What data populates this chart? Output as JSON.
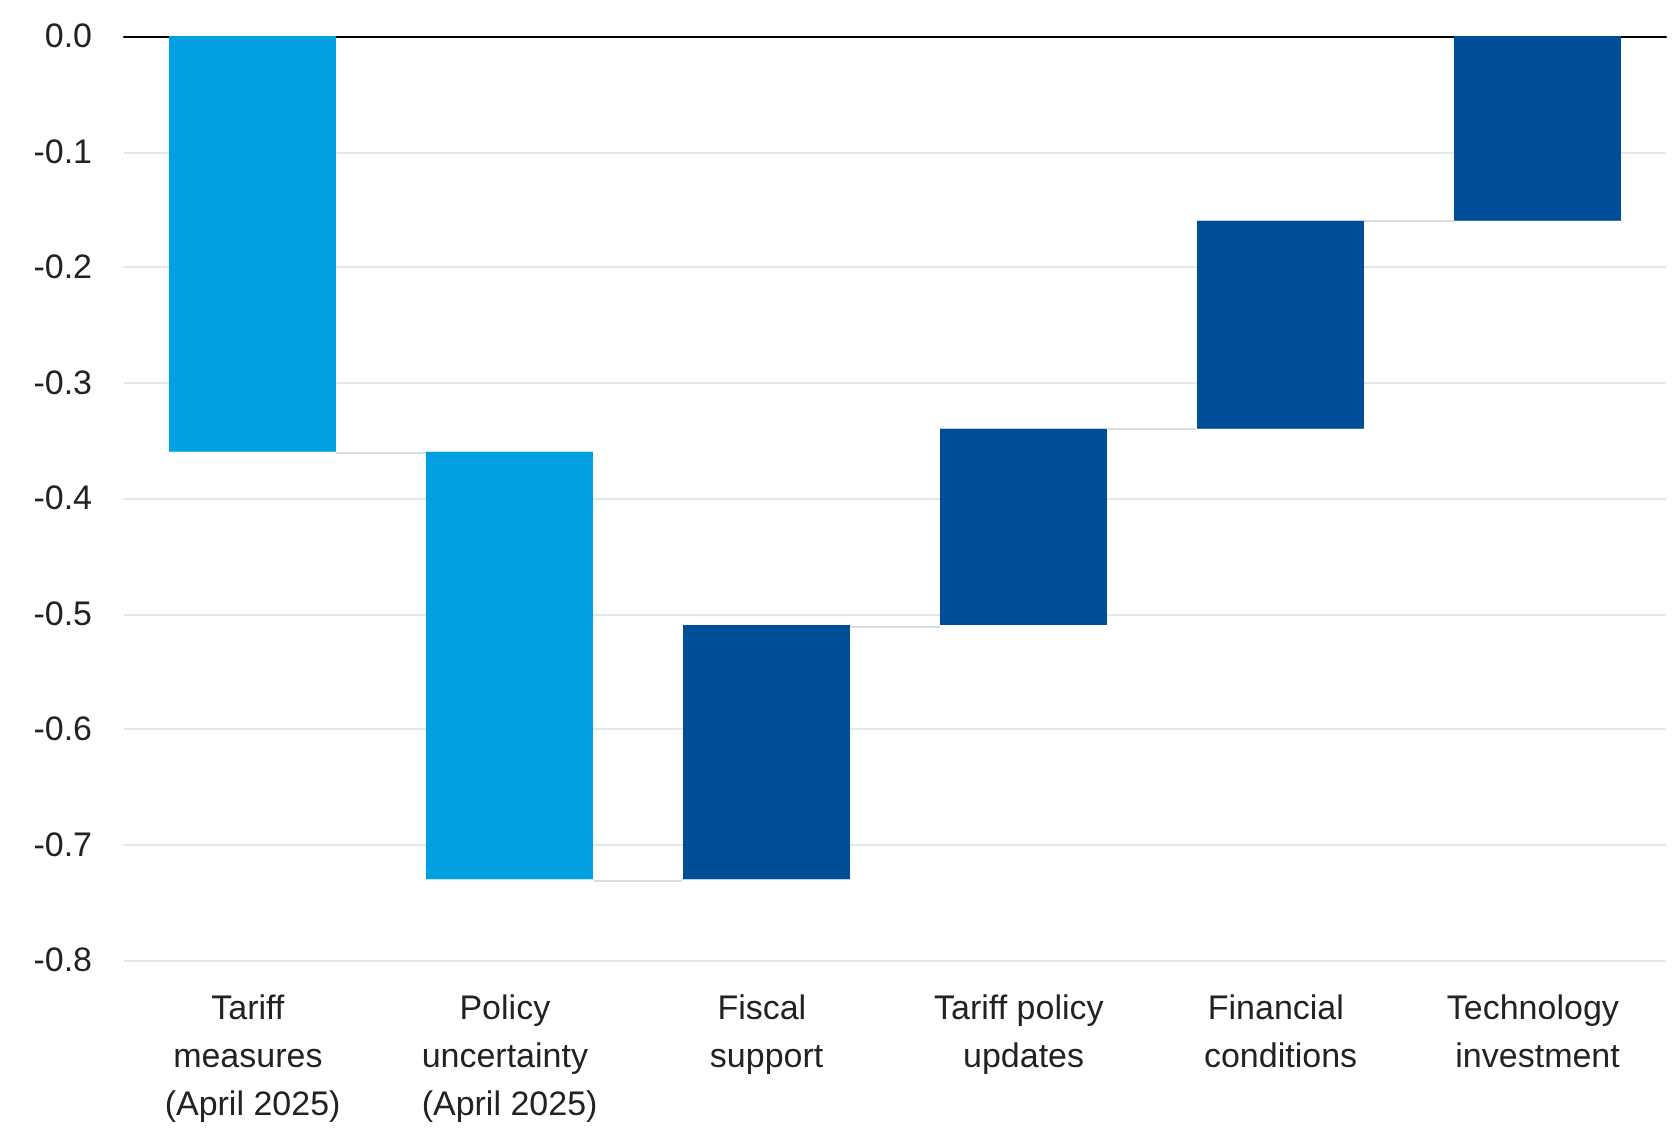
{
  "chart_data": {
    "type": "bar",
    "categories": [
      "Tariff measures (April 2025)",
      "Policy uncertainty (April 2025)",
      "Fiscal support",
      "Tariff policy updates",
      "Financial conditions",
      "Technology investment"
    ],
    "values": [
      -0.36,
      -0.37,
      0.22,
      0.17,
      0.18,
      0.16
    ],
    "base": [
      0,
      -0.36,
      -0.73,
      -0.51,
      -0.34,
      -0.16
    ],
    "colors": [
      "#00a0e0",
      "#00a0e0",
      "#004e98",
      "#004e98",
      "#004e98",
      "#004e98"
    ],
    "ylim": [
      -0.8,
      0
    ],
    "yticks": [
      {
        "value": 0,
        "label": "0.0"
      },
      -0.1,
      -0.2,
      -0.3,
      -0.4,
      -0.5,
      -0.6,
      -0.7,
      -0.8
    ],
    "grid": "y"
  }
}
